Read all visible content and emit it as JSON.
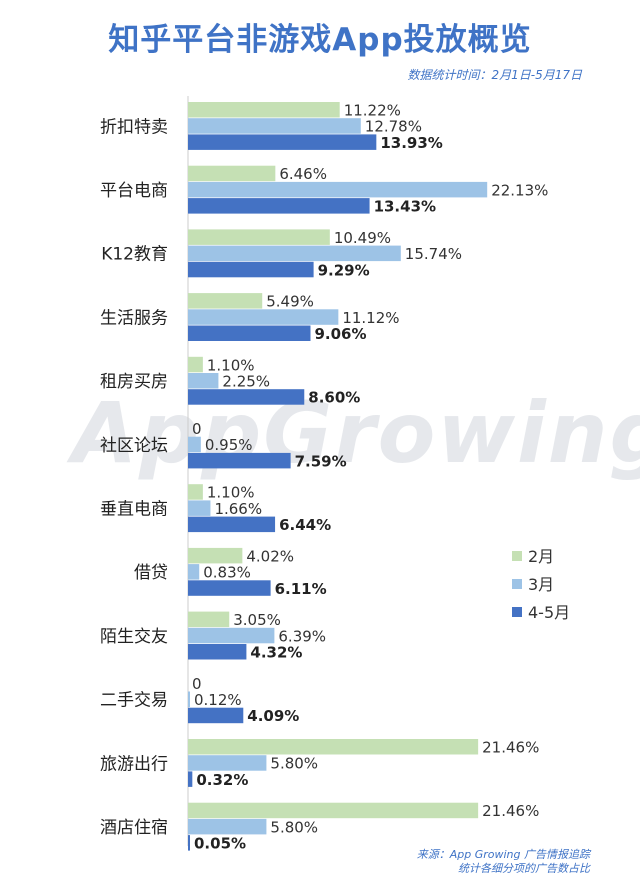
{
  "header": {
    "title": "知乎平台非游戏App投放概览",
    "subtitle": "数据统计时间：2月1日-5月17日"
  },
  "watermark": "AppGrowing",
  "footer": {
    "source_line1": "来源：App Growing 广告情报追踪",
    "source_line2": "统计各细分项的广告数占比"
  },
  "colors": {
    "feb": "#c5e0b4",
    "mar": "#9dc3e6",
    "aprmay": "#4472c4"
  },
  "chart_data": {
    "type": "bar",
    "orientation": "horizontal",
    "categories": [
      "折扣特卖",
      "平台电商",
      "K12教育",
      "生活服务",
      "租房买房",
      "社区论坛",
      "垂直电商",
      "借贷",
      "陌生交友",
      "二手交易",
      "旅游出行",
      "酒店住宿"
    ],
    "series": [
      {
        "name": "2月",
        "values": [
          11.22,
          6.46,
          10.49,
          5.49,
          1.1,
          0,
          1.1,
          4.02,
          3.05,
          0,
          21.46,
          21.46
        ],
        "labels": [
          "11.22%",
          "6.46%",
          "10.49%",
          "5.49%",
          "1.10%",
          "0",
          "1.10%",
          "4.02%",
          "3.05%",
          "0",
          "21.46%",
          "21.46%"
        ]
      },
      {
        "name": "3月",
        "values": [
          12.78,
          22.13,
          15.74,
          11.12,
          2.25,
          0.95,
          1.66,
          0.83,
          6.39,
          0.12,
          5.8,
          5.8
        ],
        "labels": [
          "12.78%",
          "22.13%",
          "15.74%",
          "11.12%",
          "2.25%",
          "0.95%",
          "1.66%",
          "0.83%",
          "6.39%",
          "0.12%",
          "5.80%",
          "5.80%"
        ]
      },
      {
        "name": "4-5月",
        "values": [
          13.93,
          13.43,
          9.29,
          9.06,
          8.6,
          7.59,
          6.44,
          6.11,
          4.32,
          4.09,
          0.32,
          0.05
        ],
        "labels": [
          "13.93%",
          "13.43%",
          "9.29%",
          "9.06%",
          "8.60%",
          "7.59%",
          "6.44%",
          "6.11%",
          "4.32%",
          "4.09%",
          "0.32%",
          "0.05%"
        ]
      }
    ],
    "legend": {
      "position": "right"
    },
    "grid": false
  }
}
